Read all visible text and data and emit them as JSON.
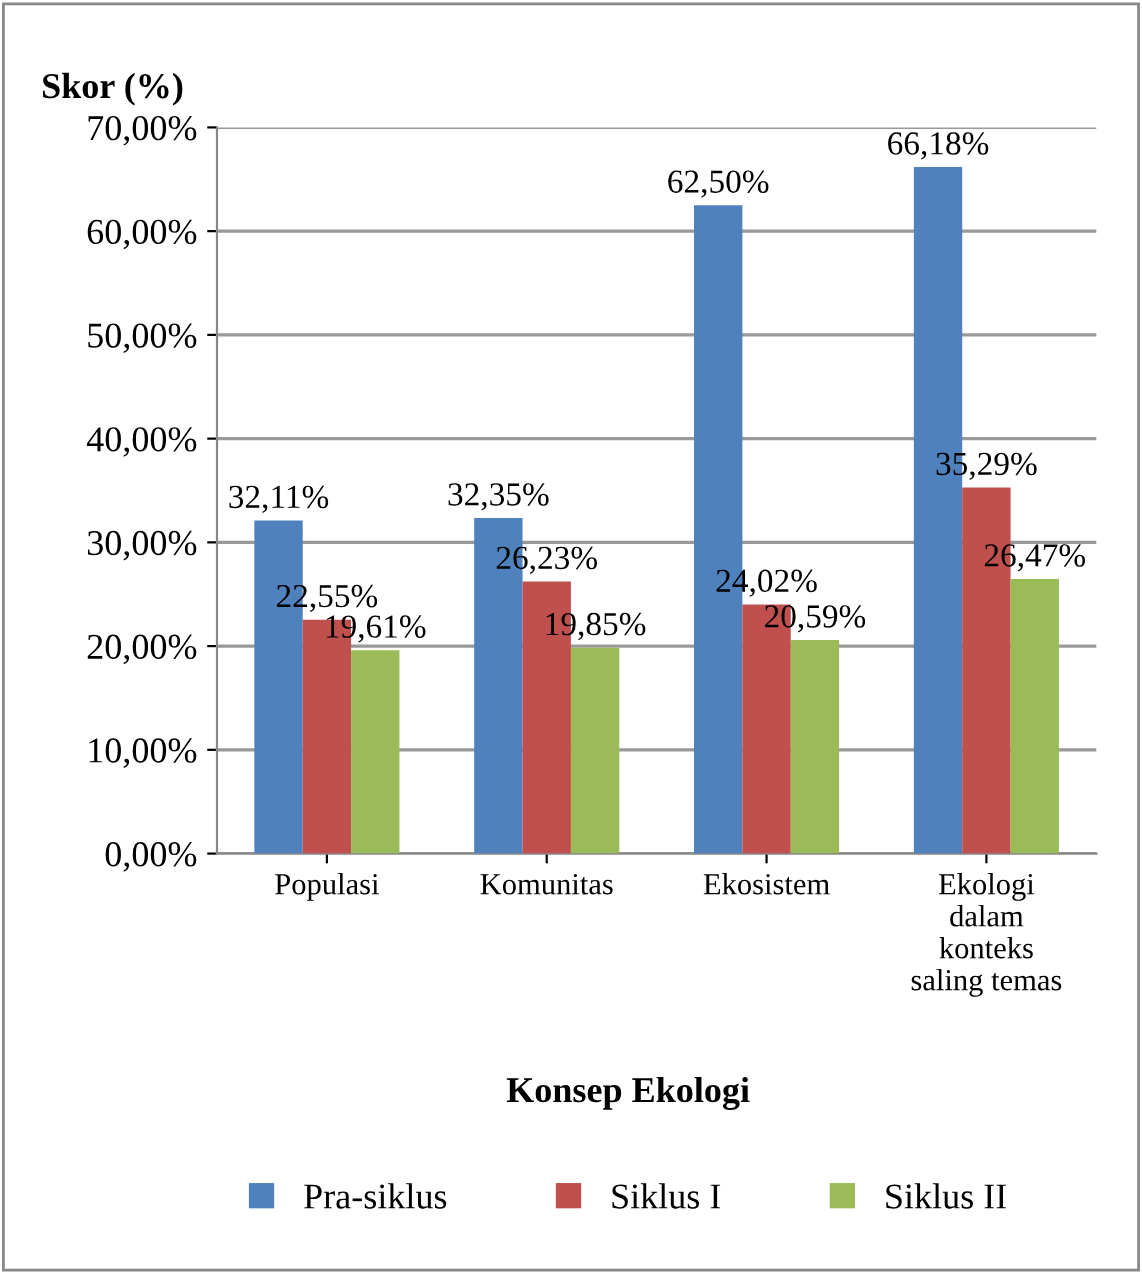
{
  "chart_data": {
    "type": "bar",
    "ylabel": "Skor (%)",
    "xlabel": "Konsep Ekologi",
    "categories": [
      "Populasi",
      "Komunitas",
      "Ekosistem",
      "Ekologi\ndalam\nkonteks\nsaling temas"
    ],
    "series": [
      {
        "name": "Pra-siklus",
        "color": "#4f81bd",
        "values": [
          32.11,
          32.35,
          62.5,
          66.18
        ],
        "value_labels": [
          "32,11%",
          "32,35%",
          "62,50%",
          "66,18%"
        ]
      },
      {
        "name": "Siklus I",
        "color": "#c0504d",
        "values": [
          22.55,
          26.23,
          24.02,
          35.29
        ],
        "value_labels": [
          "22,55%",
          "26,23%",
          "24,02%",
          "35,29%"
        ]
      },
      {
        "name": "Siklus II",
        "color": "#9bbb59",
        "values": [
          19.61,
          19.85,
          20.59,
          26.47
        ],
        "value_labels": [
          "19,61%",
          "19,85%",
          "20,59%",
          "26,47%"
        ]
      }
    ],
    "ylim": [
      0,
      70
    ],
    "yticks": [
      {
        "value": 0,
        "label": "0,00%"
      },
      {
        "value": 10,
        "label": "10,00%"
      },
      {
        "value": 20,
        "label": "20,00%"
      },
      {
        "value": 30,
        "label": "30,00%"
      },
      {
        "value": 40,
        "label": "40,00%"
      },
      {
        "value": 50,
        "label": "50,00%"
      },
      {
        "value": 60,
        "label": "60,00%"
      },
      {
        "value": 70,
        "label": "70,00%"
      }
    ],
    "grid": "y",
    "legend": "bottom"
  }
}
